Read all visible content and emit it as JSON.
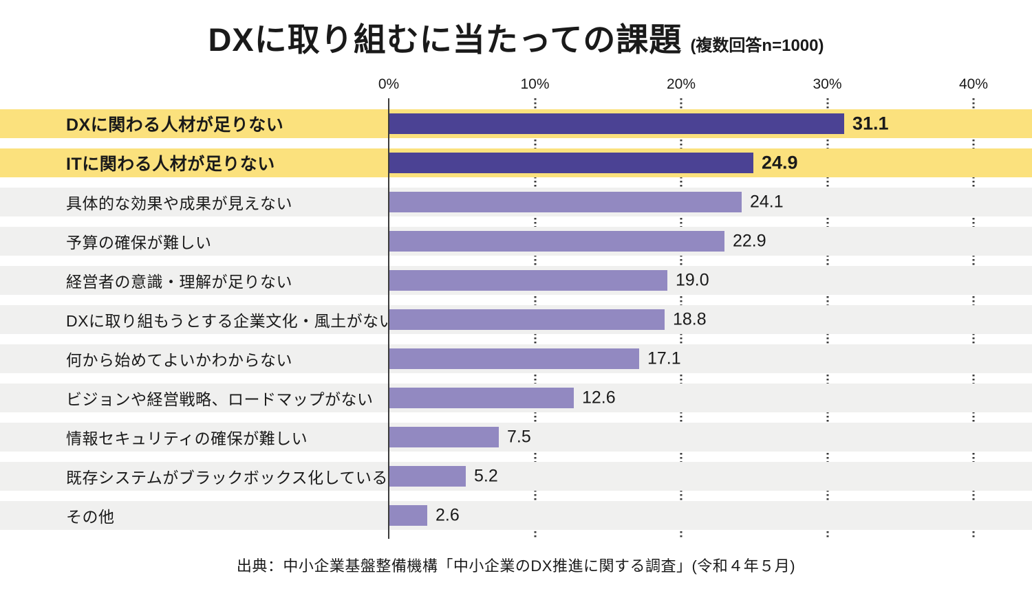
{
  "page": {
    "title": "DXに取り組むに当たっての課題",
    "subtitle": "(複数回答n=1000)",
    "source": "出典：中小企業基盤整備機構「中小企業のDX推進に関する調査」(令和４年５月)"
  },
  "chart_data": {
    "type": "bar",
    "orientation": "horizontal",
    "title": "DXに取り組むに当たっての課題",
    "subtitle": "(複数回答n=1000)",
    "unit": "%",
    "xlim": [
      0,
      40
    ],
    "x_ticks": [
      "0%",
      "10%",
      "20%",
      "30%",
      "40%"
    ],
    "grid": "dotted-vertical",
    "categories": [
      "DXに関わる人材が足りない",
      "ITに関わる人材が足りない",
      "具体的な効果や成果が見えない",
      "予算の確保が難しい",
      "経営者の意識・理解が足りない",
      "DXに取り組もうとする企業文化・風土がない",
      "何から始めてよいかわからない",
      "ビジョンや経営戦略、ロードマップがない",
      "情報セキュリティの確保が難しい",
      "既存システムがブラックボックス化している",
      "その他"
    ],
    "values": [
      31.1,
      24.9,
      24.1,
      22.9,
      19.0,
      18.8,
      17.1,
      12.6,
      7.5,
      5.2,
      2.6
    ],
    "value_labels": [
      "31.1",
      "24.9",
      "24.1",
      "22.9",
      "19.0",
      "18.8",
      "17.1",
      "12.6",
      "7.5",
      "5.2",
      "2.6"
    ],
    "highlighted": [
      true,
      true,
      false,
      false,
      false,
      false,
      false,
      false,
      false,
      false,
      false
    ],
    "source": "出典：中小企業基盤整備機構「中小企業のDX推進に関する調査」(令和４年５月)"
  },
  "colors": {
    "highlight_row_bg": "#FBE17D",
    "row_bg": "#F0F0EF",
    "highlight_bar": "#4B4294",
    "bar": "#9289C1",
    "text": "#1A1A1A",
    "axis_line": "#3A3A3A",
    "grid_dot": "#3A3A3A"
  }
}
